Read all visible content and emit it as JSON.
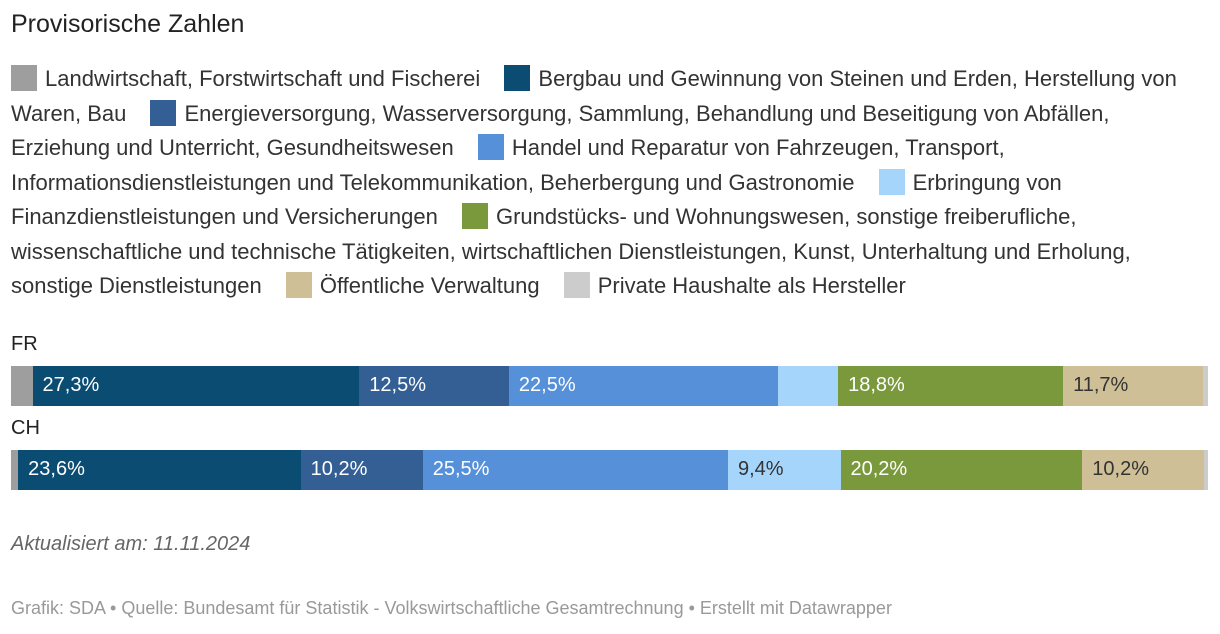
{
  "title": "Provisorische Zahlen",
  "chart_data": {
    "type": "stacked-bar",
    "categories": [
      "Landwirtschaft, Forstwirtschaft und Fischerei",
      "Bergbau und Gewinnung von Steinen und Erden, Herstellung von Waren, Bau",
      "Energieversorgung, Wasserversorgung, Sammlung, Behandlung und Beseitigung von Abfällen, Erziehung und Unterricht, Gesundheitswesen",
      "Handel und Reparatur von Fahrzeugen, Transport, Informationsdienstleistungen und Telekommunikation, Beherbergung und Gastronomie",
      "Erbringung von Finanzdienstleistungen und Versicherungen",
      "Grundstücks- und Wohnungswesen, sonstige freiberufliche, wissenschaftliche und technische Tätigkeiten, wirtschaftlichen Dienstleistungen, Kunst, Unterhaltung und Erholung, sonstige Dienstleistungen",
      "Öffentliche Verwaltung",
      "Private Haushalte als Hersteller"
    ],
    "colors": [
      "#9e9e9e",
      "#0b4c73",
      "#335f95",
      "#5590d9",
      "#a5d5fb",
      "#7a983c",
      "#cfbf97",
      "#cccccc"
    ],
    "text_colors": [
      "#ffffff",
      "#ffffff",
      "#ffffff",
      "#ffffff",
      "#333333",
      "#ffffff",
      "#333333",
      "#333333"
    ],
    "series": [
      {
        "name": "FR",
        "values": [
          1.8,
          27.3,
          12.5,
          22.5,
          5.0,
          18.8,
          11.7,
          0.4
        ],
        "labels": [
          "",
          "27,3%",
          "12,5%",
          "22,5%",
          "",
          "18,8%",
          "11,7%",
          ""
        ]
      },
      {
        "name": "CH",
        "values": [
          0.6,
          23.6,
          10.2,
          25.5,
          9.4,
          20.2,
          10.2,
          0.3
        ],
        "labels": [
          "",
          "23,6%",
          "10,2%",
          "25,5%",
          "9,4%",
          "20,2%",
          "10,2%",
          ""
        ]
      }
    ],
    "xlim": [
      0,
      100
    ]
  },
  "note": "Aktualisiert am: 11.11.2024",
  "footer": "Grafik: SDA • Quelle: Bundesamt für Statistik - Volkswirtschaftliche Gesamtrechnung • Erstellt mit Datawrapper"
}
